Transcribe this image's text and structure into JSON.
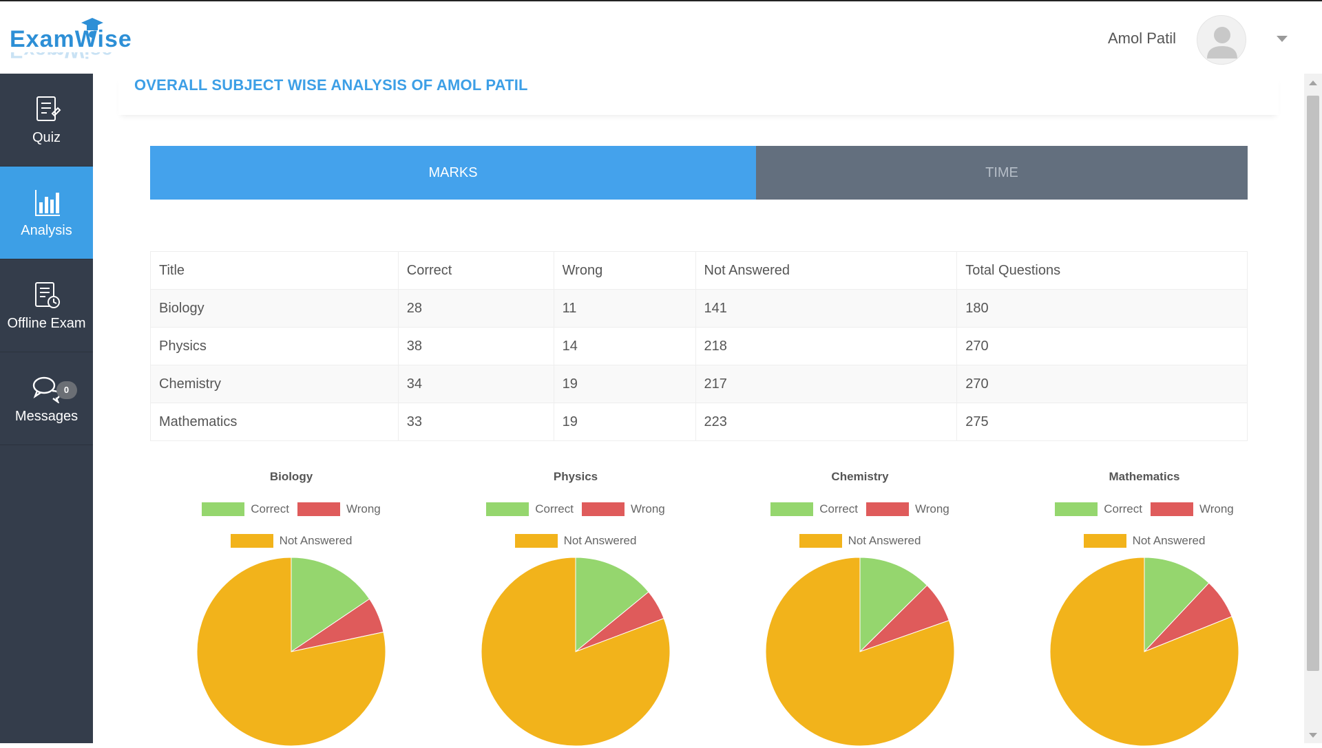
{
  "app": {
    "logo_text": "ExamWise",
    "logo_reflection": "ExamWise"
  },
  "header": {
    "user_name": "Amol Patil",
    "user_menu_icon": "chevron-down-icon",
    "avatar_icon": "user-avatar-icon"
  },
  "sidebar": {
    "items": [
      {
        "label": "Quiz",
        "icon": "quiz-icon",
        "active": false
      },
      {
        "label": "Analysis",
        "icon": "bar-chart-icon",
        "active": true
      },
      {
        "label": "Offline Exam",
        "icon": "offline-exam-icon",
        "active": false
      },
      {
        "label": "Messages",
        "icon": "messages-icon",
        "active": false,
        "badge": "0"
      }
    ]
  },
  "main": {
    "title": "OVERALL SUBJECT WISE ANALYSIS OF AMOL PATIL",
    "tabs": [
      {
        "label": "MARKS",
        "active": true
      },
      {
        "label": "TIME",
        "active": false
      }
    ],
    "table": {
      "columns": [
        "Title",
        "Correct",
        "Wrong",
        "Not Answered",
        "Total Questions"
      ],
      "rows": [
        [
          "Biology",
          "28",
          "11",
          "141",
          "180"
        ],
        [
          "Physics",
          "38",
          "14",
          "218",
          "270"
        ],
        [
          "Chemistry",
          "34",
          "19",
          "217",
          "270"
        ],
        [
          "Mathematics",
          "33",
          "19",
          "223",
          "275"
        ]
      ]
    }
  },
  "colors": {
    "correct": "#95d66e",
    "wrong": "#df5b5b",
    "not_answered": "#f2b31b",
    "accent": "#3d9fe6"
  },
  "chart_data": [
    {
      "type": "pie",
      "title": "Biology",
      "categories": [
        "Correct",
        "Wrong",
        "Not Answered"
      ],
      "values": [
        28,
        11,
        141
      ],
      "legend": "top"
    },
    {
      "type": "pie",
      "title": "Physics",
      "categories": [
        "Correct",
        "Wrong",
        "Not Answered"
      ],
      "values": [
        38,
        14,
        218
      ],
      "legend": "top"
    },
    {
      "type": "pie",
      "title": "Chemistry",
      "categories": [
        "Correct",
        "Wrong",
        "Not Answered"
      ],
      "values": [
        34,
        19,
        217
      ],
      "legend": "top"
    },
    {
      "type": "pie",
      "title": "Mathematics",
      "categories": [
        "Correct",
        "Wrong",
        "Not Answered"
      ],
      "values": [
        33,
        19,
        223
      ],
      "legend": "top"
    }
  ]
}
